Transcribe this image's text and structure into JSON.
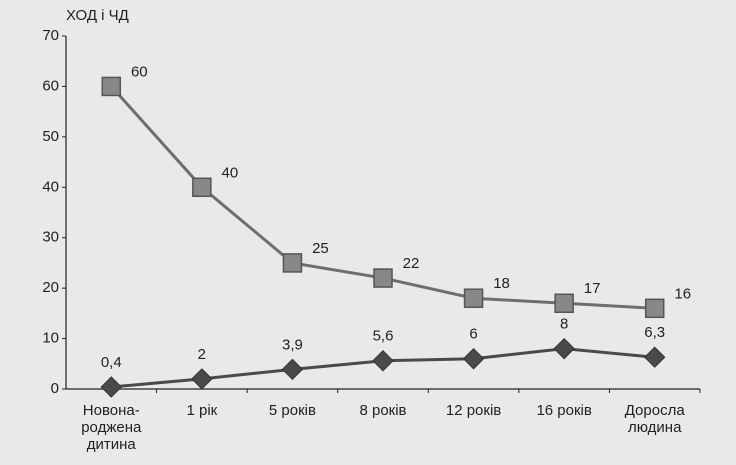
{
  "chart_data": {
    "type": "line",
    "y_label": "ХОД і ЧД",
    "categories": [
      "Новона-\nроджена\nдитина",
      "1 рік",
      "5 років",
      "8 років",
      "12 років",
      "16 років",
      "Доросла\nлюдина"
    ],
    "series": [
      {
        "color": "#6e6e6e",
        "marker": "square",
        "values": [
          60,
          40,
          25,
          22,
          18,
          17,
          16
        ]
      },
      {
        "color": "#4a4a4a",
        "marker": "diamond",
        "values": [
          0.4,
          2,
          3.9,
          5.6,
          6,
          8,
          6.3
        ],
        "value_labels": [
          "0,4",
          "2",
          "3,9",
          "5,6",
          "6",
          "8",
          "6,3"
        ]
      }
    ],
    "ylim": [
      0,
      70
    ],
    "yticks": [
      0,
      10,
      20,
      30,
      40,
      50,
      60,
      70
    ],
    "grid": false
  }
}
